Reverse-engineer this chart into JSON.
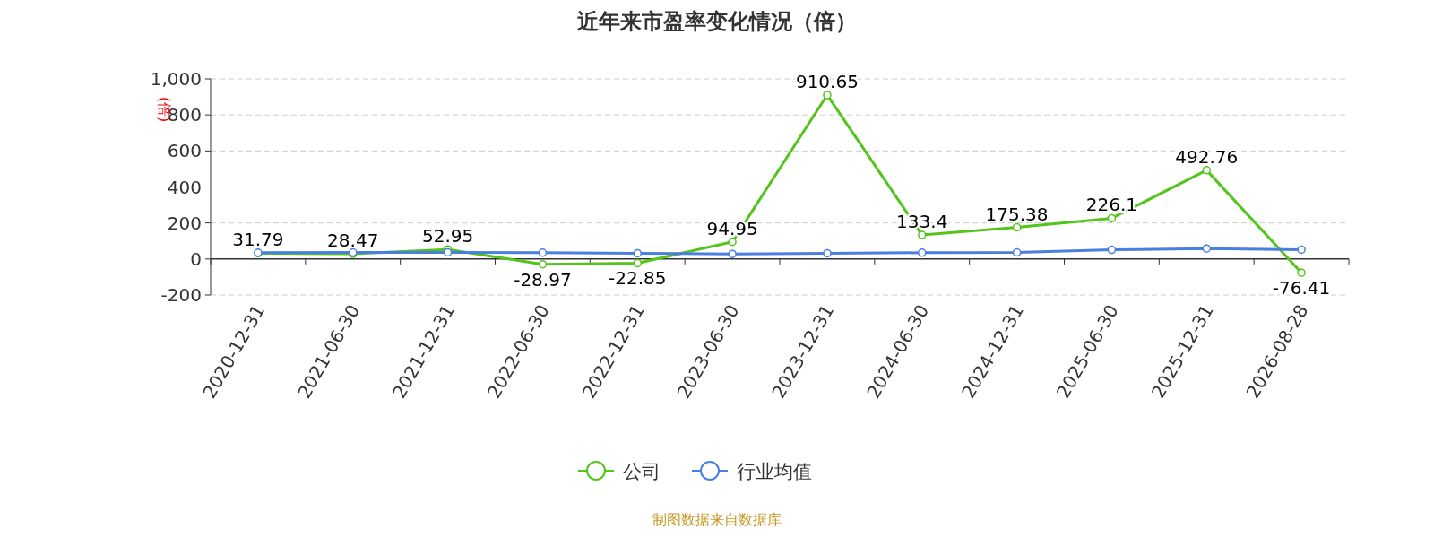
{
  "chart_data": {
    "type": "line",
    "title": "近年来市盈率变化情况（倍）",
    "ylabel": "(倍)",
    "categories": [
      "2020-12-31",
      "2021-06-30",
      "2021-12-31",
      "2022-06-30",
      "2022-12-31",
      "2023-06-30",
      "2023-12-31",
      "2024-06-30",
      "2024-12-31",
      "2025-06-30",
      "2025-12-31",
      "2026-08-28"
    ],
    "series": [
      {
        "name": "公司",
        "color": "#52c41a",
        "values": [
          31.79,
          28.47,
          52.95,
          -28.97,
          -22.85,
          94.95,
          910.65,
          133.4,
          175.38,
          226.1,
          492.76,
          -76.41
        ],
        "data_labels": true
      },
      {
        "name": "行业均值",
        "color": "#4a7fe0",
        "values": [
          35,
          36,
          37,
          35,
          32,
          28,
          32,
          35,
          36,
          51,
          58,
          52
        ]
      }
    ],
    "ylim": [
      -200,
      1000
    ],
    "yticks": [
      {
        "value": -200,
        "label": "-200"
      },
      0,
      200,
      400,
      600,
      800,
      {
        "value": 1000,
        "label": "1,000"
      }
    ],
    "grid": "y",
    "legend": "bottom",
    "marker": "circle",
    "line_style": "solid",
    "annotations": [
      "制图数据来自数据库"
    ]
  }
}
